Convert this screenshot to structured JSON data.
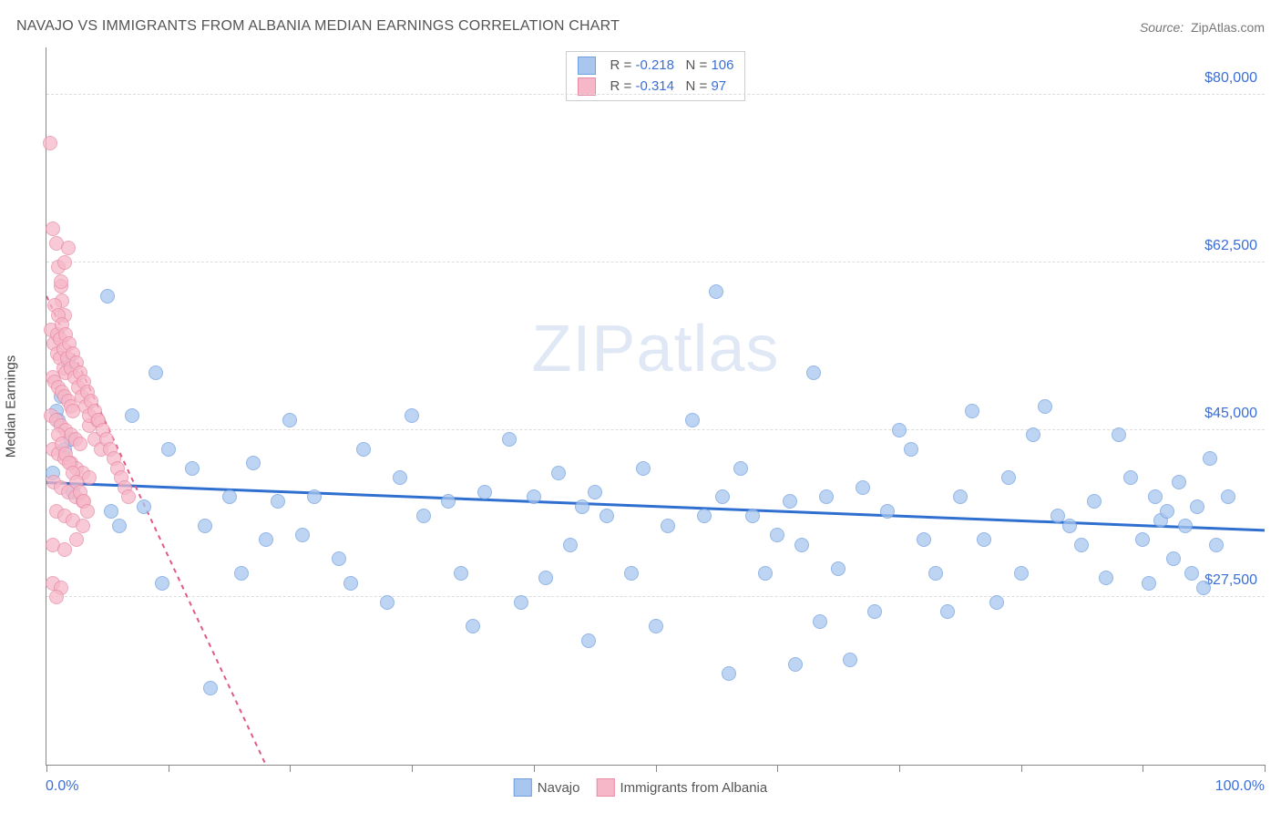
{
  "title": "NAVAJO VS IMMIGRANTS FROM ALBANIA MEDIAN EARNINGS CORRELATION CHART",
  "source_label": "Source:",
  "source_value": "ZipAtlas.com",
  "watermark_a": "ZIP",
  "watermark_b": "atlas",
  "chart": {
    "type": "scatter",
    "yaxis_label": "Median Earnings",
    "xmin": 0,
    "xmax": 100,
    "ymin": 10000,
    "ymax": 85000,
    "x_label_min": "0.0%",
    "x_label_max": "100.0%",
    "yticks": [
      27500,
      45000,
      62500,
      80000
    ],
    "ytick_labels": [
      "$27,500",
      "$45,000",
      "$62,500",
      "$80,000"
    ],
    "xtick_marks": [
      0,
      10,
      20,
      30,
      40,
      50,
      60,
      70,
      80,
      90,
      100
    ],
    "grid_color": "#dddddd",
    "background": "#ffffff",
    "series": [
      {
        "name": "Navajo",
        "fill": "#a8c6ee",
        "stroke": "#6f9fe0",
        "opacity": 0.75,
        "trend_color": "#2f6fd0",
        "trend_width": 3,
        "trend_dash": "none",
        "trend": {
          "x1": 0,
          "y1": 39500,
          "x2": 100,
          "y2": 34500
        },
        "stats": {
          "R": "-0.218",
          "N": "106"
        },
        "points": [
          [
            0.5,
            40500
          ],
          [
            0.8,
            47000
          ],
          [
            1,
            46000
          ],
          [
            1.2,
            48500
          ],
          [
            1.5,
            43000
          ],
          [
            1.8,
            52000
          ],
          [
            2,
            44000
          ],
          [
            2.2,
            38500
          ],
          [
            5,
            59000
          ],
          [
            5.3,
            36500
          ],
          [
            6,
            35000
          ],
          [
            7,
            46500
          ],
          [
            8,
            37000
          ],
          [
            9,
            51000
          ],
          [
            9.5,
            29000
          ],
          [
            10,
            43000
          ],
          [
            12,
            41000
          ],
          [
            13,
            35000
          ],
          [
            13.5,
            18000
          ],
          [
            15,
            38000
          ],
          [
            16,
            30000
          ],
          [
            17,
            41500
          ],
          [
            18,
            33500
          ],
          [
            19,
            37500
          ],
          [
            20,
            46000
          ],
          [
            21,
            34000
          ],
          [
            22,
            38000
          ],
          [
            24,
            31500
          ],
          [
            25,
            29000
          ],
          [
            26,
            43000
          ],
          [
            28,
            27000
          ],
          [
            29,
            40000
          ],
          [
            30,
            46500
          ],
          [
            31,
            36000
          ],
          [
            33,
            37500
          ],
          [
            34,
            30000
          ],
          [
            35,
            24500
          ],
          [
            36,
            38500
          ],
          [
            38,
            44000
          ],
          [
            39,
            27000
          ],
          [
            40,
            38000
          ],
          [
            41,
            29500
          ],
          [
            42,
            40500
          ],
          [
            43,
            33000
          ],
          [
            44,
            37000
          ],
          [
            44.5,
            23000
          ],
          [
            45,
            38500
          ],
          [
            46,
            36000
          ],
          [
            48,
            30000
          ],
          [
            49,
            41000
          ],
          [
            50,
            24500
          ],
          [
            51,
            35000
          ],
          [
            53,
            46000
          ],
          [
            54,
            36000
          ],
          [
            55,
            59500
          ],
          [
            55.5,
            38000
          ],
          [
            56,
            19500
          ],
          [
            57,
            41000
          ],
          [
            58,
            36000
          ],
          [
            59,
            30000
          ],
          [
            60,
            34000
          ],
          [
            61,
            37500
          ],
          [
            61.5,
            20500
          ],
          [
            62,
            33000
          ],
          [
            63,
            51000
          ],
          [
            63.5,
            25000
          ],
          [
            64,
            38000
          ],
          [
            65,
            30500
          ],
          [
            66,
            21000
          ],
          [
            67,
            39000
          ],
          [
            68,
            26000
          ],
          [
            69,
            36500
          ],
          [
            70,
            45000
          ],
          [
            71,
            43000
          ],
          [
            72,
            33500
          ],
          [
            73,
            30000
          ],
          [
            74,
            26000
          ],
          [
            75,
            38000
          ],
          [
            76,
            47000
          ],
          [
            77,
            33500
          ],
          [
            78,
            27000
          ],
          [
            79,
            40000
          ],
          [
            80,
            30000
          ],
          [
            81,
            44500
          ],
          [
            82,
            47500
          ],
          [
            83,
            36000
          ],
          [
            84,
            35000
          ],
          [
            85,
            33000
          ],
          [
            86,
            37500
          ],
          [
            87,
            29500
          ],
          [
            88,
            44500
          ],
          [
            89,
            40000
          ],
          [
            90,
            33500
          ],
          [
            90.5,
            29000
          ],
          [
            91,
            38000
          ],
          [
            91.5,
            35500
          ],
          [
            92,
            36500
          ],
          [
            92.5,
            31500
          ],
          [
            93,
            39500
          ],
          [
            93.5,
            35000
          ],
          [
            94,
            30000
          ],
          [
            94.5,
            37000
          ],
          [
            95,
            28500
          ],
          [
            95.5,
            42000
          ],
          [
            96,
            33000
          ],
          [
            97,
            38000
          ]
        ]
      },
      {
        "name": "Immigrants from Albania",
        "fill": "#f6b8c9",
        "stroke": "#e88aa5",
        "opacity": 0.75,
        "trend_color": "#e05b84",
        "trend_width": 2,
        "trend_dash": "5,5",
        "trend": {
          "x1": 0,
          "y1": 59000,
          "x2": 18,
          "y2": 10000
        },
        "stats": {
          "R": "-0.314",
          "N": "97"
        },
        "points": [
          [
            0.3,
            75000
          ],
          [
            0.5,
            66000
          ],
          [
            0.8,
            64500
          ],
          [
            1,
            62000
          ],
          [
            1.2,
            60000
          ],
          [
            1.3,
            58500
          ],
          [
            1.5,
            57000
          ],
          [
            0.4,
            55500
          ],
          [
            0.6,
            54000
          ],
          [
            0.9,
            53000
          ],
          [
            1.1,
            52500
          ],
          [
            1.4,
            51500
          ],
          [
            1.6,
            51000
          ],
          [
            0.5,
            50500
          ],
          [
            0.7,
            50000
          ],
          [
            1,
            49500
          ],
          [
            1.3,
            49000
          ],
          [
            1.5,
            48500
          ],
          [
            1.8,
            48000
          ],
          [
            2,
            47500
          ],
          [
            2.2,
            47000
          ],
          [
            0.4,
            46500
          ],
          [
            0.8,
            46000
          ],
          [
            1.2,
            45500
          ],
          [
            1.6,
            45000
          ],
          [
            2,
            44500
          ],
          [
            2.4,
            44000
          ],
          [
            2.8,
            43500
          ],
          [
            0.5,
            43000
          ],
          [
            1,
            42500
          ],
          [
            1.5,
            42000
          ],
          [
            2,
            41500
          ],
          [
            2.5,
            41000
          ],
          [
            3,
            40500
          ],
          [
            3.5,
            40000
          ],
          [
            0.6,
            39500
          ],
          [
            1.2,
            39000
          ],
          [
            1.8,
            38500
          ],
          [
            2.4,
            38000
          ],
          [
            3,
            37500
          ],
          [
            3.5,
            45500
          ],
          [
            4,
            44000
          ],
          [
            4.2,
            46000
          ],
          [
            4.5,
            43000
          ],
          [
            0.8,
            36500
          ],
          [
            1.5,
            36000
          ],
          [
            2.2,
            35500
          ],
          [
            3,
            35000
          ],
          [
            0.5,
            33000
          ],
          [
            1.5,
            32500
          ],
          [
            2.5,
            33500
          ],
          [
            0.5,
            29000
          ],
          [
            1.2,
            28500
          ],
          [
            0.8,
            27500
          ],
          [
            1,
            44500
          ],
          [
            1.3,
            43500
          ],
          [
            1.6,
            42500
          ],
          [
            1.9,
            41500
          ],
          [
            2.2,
            40500
          ],
          [
            2.5,
            39500
          ],
          [
            2.8,
            38500
          ],
          [
            3.1,
            37500
          ],
          [
            3.4,
            36500
          ],
          [
            0.9,
            55000
          ],
          [
            1.1,
            54500
          ],
          [
            1.4,
            53500
          ],
          [
            1.7,
            52500
          ],
          [
            2,
            51500
          ],
          [
            2.3,
            50500
          ],
          [
            2.6,
            49500
          ],
          [
            2.9,
            48500
          ],
          [
            3.2,
            47500
          ],
          [
            3.5,
            46500
          ],
          [
            0.7,
            58000
          ],
          [
            1,
            57000
          ],
          [
            1.3,
            56000
          ],
          [
            1.6,
            55000
          ],
          [
            1.9,
            54000
          ],
          [
            2.2,
            53000
          ],
          [
            2.5,
            52000
          ],
          [
            2.8,
            51000
          ],
          [
            3.1,
            50000
          ],
          [
            3.4,
            49000
          ],
          [
            3.7,
            48000
          ],
          [
            4,
            47000
          ],
          [
            4.3,
            46000
          ],
          [
            4.6,
            45000
          ],
          [
            4.9,
            44000
          ],
          [
            5.2,
            43000
          ],
          [
            5.5,
            42000
          ],
          [
            5.8,
            41000
          ],
          [
            6.1,
            40000
          ],
          [
            6.4,
            39000
          ],
          [
            6.7,
            38000
          ],
          [
            1.2,
            60500
          ],
          [
            1.5,
            62500
          ],
          [
            1.8,
            64000
          ]
        ]
      }
    ]
  }
}
